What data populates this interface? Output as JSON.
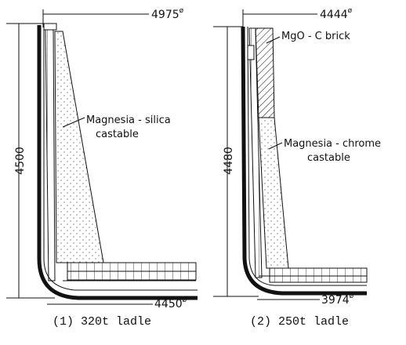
{
  "diagrams": [
    {
      "caption": "(1) 320t ladle",
      "top_diameter": {
        "value": "4975",
        "symbol": "ø"
      },
      "bottom_diameter": {
        "value": "4450",
        "symbol": "ø"
      },
      "height": "4500",
      "labels": [
        "Magnesia - silica",
        "castable"
      ]
    },
    {
      "caption": "(2) 250t ladle",
      "top_diameter": {
        "value": "4444",
        "symbol": "ø"
      },
      "bottom_diameter": {
        "value": "3974",
        "symbol": "ø"
      },
      "height": "4480",
      "labels": [
        "MgO - C  brick",
        "Magnesia - chrome",
        "castable"
      ]
    }
  ]
}
